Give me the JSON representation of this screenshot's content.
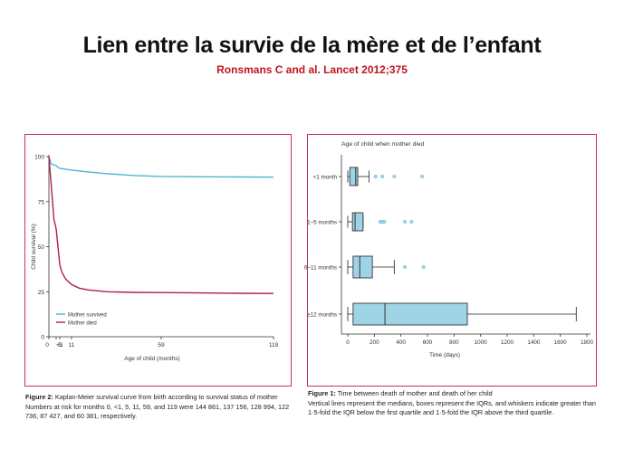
{
  "title": "Lien entre la survie de la mère et de l’enfant",
  "subtitle": "Ronsmans C and al. Lancet 2012;375",
  "colors": {
    "accent_red": "#c0141b",
    "frame": "#c8334f",
    "survived": "#4eb3d3",
    "died": "#b21e45",
    "box_fill": "#9fd3e6"
  },
  "chart_data": [
    {
      "type": "line",
      "ylabel": "Child survival (%)",
      "xlabel": "Age of child (months)",
      "ylim": [
        0,
        100
      ],
      "xlim": [
        0,
        119
      ],
      "y_ticks": [
        "0",
        "25",
        "50",
        "75",
        "100"
      ],
      "x_ticks": [
        "0",
        "<1",
        "5",
        "11",
        "59",
        "119"
      ],
      "series": [
        {
          "name": "Mother survived",
          "points": [
            [
              0,
              100
            ],
            [
              0.3,
              96
            ],
            [
              1,
              95
            ],
            [
              3,
              94
            ],
            [
              5,
              93.5
            ],
            [
              11,
              92.5
            ],
            [
              20,
              91.5
            ],
            [
              30,
              90.5
            ],
            [
              45,
              89.5
            ],
            [
              59,
              89
            ],
            [
              80,
              88.8
            ],
            [
              100,
              88.7
            ],
            [
              119,
              88.6
            ]
          ]
        },
        {
          "name": "Mother died",
          "points": [
            [
              0,
              100
            ],
            [
              0.3,
              85
            ],
            [
              0.7,
              65
            ],
            [
              1,
              60
            ],
            [
              2,
              55
            ],
            [
              3,
              50
            ],
            [
              4,
              45
            ],
            [
              5,
              40
            ],
            [
              6,
              36
            ],
            [
              8,
              32
            ],
            [
              11,
              29
            ],
            [
              15,
              27
            ],
            [
              20,
              26
            ],
            [
              30,
              25
            ],
            [
              45,
              24.6
            ],
            [
              59,
              24.5
            ],
            [
              80,
              24.3
            ],
            [
              100,
              24.1
            ],
            [
              119,
              24
            ]
          ]
        }
      ],
      "caption_label": "Figure 2:",
      "caption_title": "Kaplan-Meier survival curve from birth according to survival status of mother",
      "caption_text": "Numbers at risk for months 0, <1, 5, 11, 59, and 119 were 144 861, 137 156, 128 994, 122 736, 87 427, and 60 381, respectively."
    },
    {
      "type": "box",
      "title": "Age of child when mother died",
      "xlabel": "Time (days)",
      "xlim": [
        0,
        1800
      ],
      "x_ticks": [
        "0",
        "200",
        "400",
        "600",
        "800",
        "1000",
        "1200",
        "1400",
        "1600",
        "1800"
      ],
      "categories": [
        "<1 month",
        "1–5 months",
        "6–11 months",
        "≥12 months"
      ],
      "boxes": [
        {
          "whisker_low": 0,
          "q1": 15,
          "median": 60,
          "q3": 75,
          "whisker_high": 160,
          "outliers": [
            210,
            260,
            350,
            560
          ]
        },
        {
          "whisker_low": 0,
          "q1": 35,
          "median": 55,
          "q3": 115,
          "whisker_high": 115,
          "outliers": [
            245,
            255,
            265,
            275,
            430,
            480
          ]
        },
        {
          "whisker_low": 0,
          "q1": 40,
          "median": 90,
          "q3": 185,
          "whisker_high": 350,
          "outliers": [
            430,
            570
          ]
        },
        {
          "whisker_low": 0,
          "q1": 40,
          "median": 280,
          "q3": 900,
          "whisker_high": 1720,
          "outliers": []
        }
      ],
      "caption_label": "Figure 1:",
      "caption_title": "Time between death of mother and death of her child",
      "caption_text": "Vertical lines represent the medians, boxes represent the IQRs, and whiskers indicate greater than 1·5-fold the IQR below the first quartile and 1·5-fold the IQR above the third quartile."
    }
  ]
}
